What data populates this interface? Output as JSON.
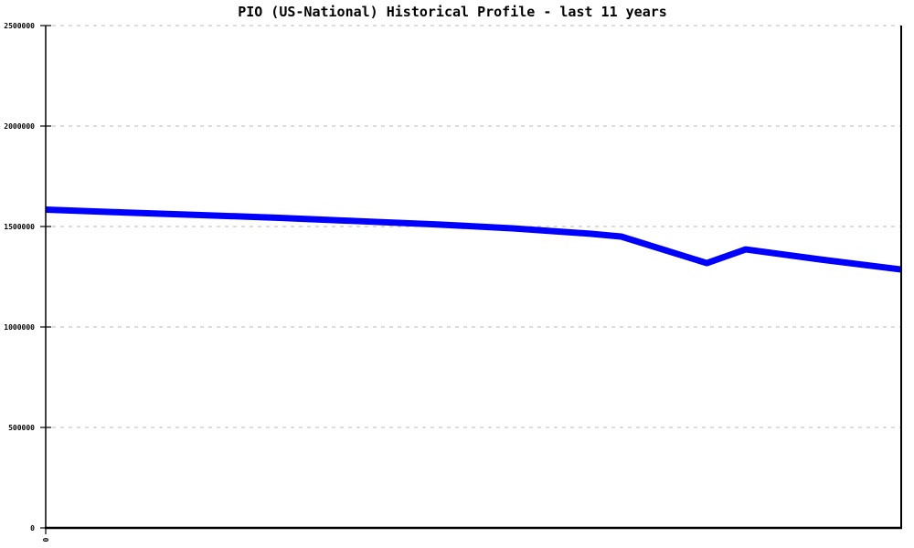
{
  "chart": {
    "title": "PIO (US-National) Historical Profile - last 11 years"
  },
  "chart_data": {
    "type": "line",
    "title": "PIO (US-National) Historical Profile - last 11 years",
    "xlabel": "",
    "ylabel": "",
    "x_axis": {
      "min": 0,
      "max": 11,
      "unit": "years",
      "tick_labels": [
        "0"
      ]
    },
    "y_axis": {
      "min": 0,
      "max": 2500000,
      "tick_interval": 500000,
      "tick_labels": [
        "0",
        "500000",
        "1000000",
        "1500000",
        "2000000",
        "2500000"
      ]
    },
    "grid": {
      "horizontal": true,
      "style": "dashed",
      "color": "#b9b9b9"
    },
    "colors": {
      "line": "#0000ff",
      "axis": "#000000",
      "background": "#ffffff"
    },
    "series": [
      {
        "name": "PIO (US-National)",
        "color": "#0000ff",
        "line_width": 7,
        "points": [
          {
            "x": 0.0,
            "y": 1584000
          },
          {
            "x": 1.0,
            "y": 1570000
          },
          {
            "x": 2.0,
            "y": 1557000
          },
          {
            "x": 3.0,
            "y": 1543000
          },
          {
            "x": 4.0,
            "y": 1527000
          },
          {
            "x": 5.0,
            "y": 1511000
          },
          {
            "x": 6.0,
            "y": 1491000
          },
          {
            "x": 7.0,
            "y": 1464000
          },
          {
            "x": 7.4,
            "y": 1450000
          },
          {
            "x": 8.5,
            "y": 1318000
          },
          {
            "x": 9.0,
            "y": 1386000
          },
          {
            "x": 10.0,
            "y": 1334000
          },
          {
            "x": 11.0,
            "y": 1286000
          }
        ]
      }
    ]
  }
}
